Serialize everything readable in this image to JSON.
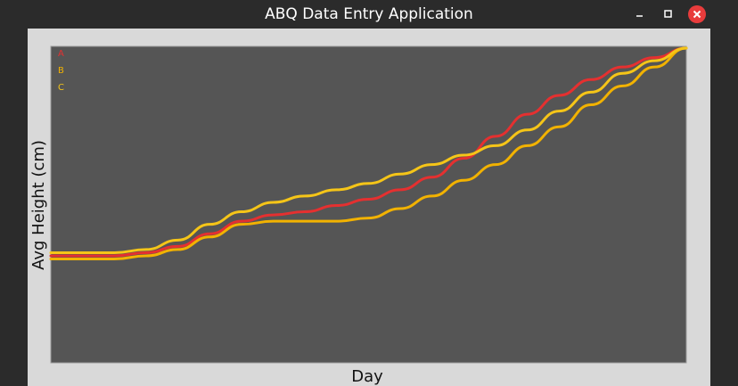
{
  "window": {
    "title": "ABQ Data Entry Application",
    "controls": {
      "minimize": "minimize-icon",
      "maximize": "maximize-icon",
      "close": "close-icon"
    }
  },
  "colors": {
    "titlebar": "#2b2b2b",
    "canvas_bg": "#d9d9d9",
    "plot_bg": "#555555",
    "series_A": "#e53030",
    "series_B": "#f2b200",
    "series_C": "#f5c518",
    "close_button": "#e83c3c"
  },
  "chart_data": {
    "type": "line",
    "title": "",
    "xlabel": "Day",
    "ylabel": "Avg Height (cm)",
    "x": [
      0,
      1,
      2,
      3,
      4,
      5,
      6,
      7,
      8,
      9,
      10,
      11,
      12,
      13,
      14,
      15,
      16,
      17,
      18,
      19,
      20
    ],
    "ylim": [
      0,
      100
    ],
    "grid": false,
    "legend_position": "top-left",
    "series": [
      {
        "name": "A",
        "color": "#e53030",
        "values": [
          34,
          34,
          34,
          35,
          37,
          41,
          45,
          47,
          48,
          50,
          52,
          55,
          59,
          65,
          72,
          79,
          85,
          90,
          94,
          97,
          100
        ]
      },
      {
        "name": "B",
        "color": "#f2b200",
        "values": [
          33,
          33,
          33,
          34,
          36,
          40,
          44,
          45,
          45,
          45,
          46,
          49,
          53,
          58,
          63,
          69,
          75,
          82,
          88,
          94,
          100
        ]
      },
      {
        "name": "C",
        "color": "#f5c518",
        "values": [
          35,
          35,
          35,
          36,
          39,
          44,
          48,
          51,
          53,
          55,
          57,
          60,
          63,
          66,
          69,
          74,
          80,
          86,
          92,
          96,
          100
        ]
      }
    ]
  }
}
